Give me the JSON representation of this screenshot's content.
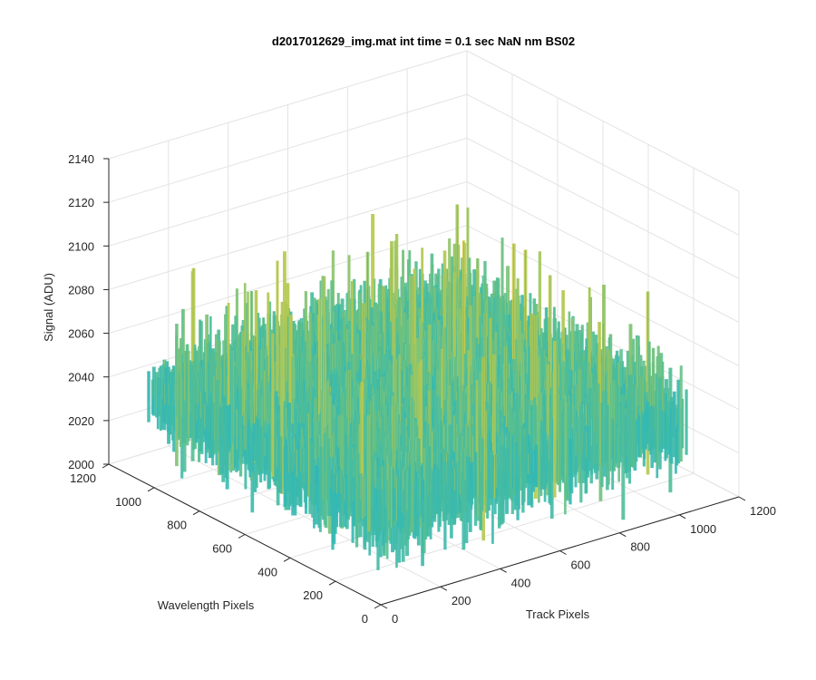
{
  "chart_data": {
    "type": "surface",
    "title": "d2017012629_img.mat int time = 0.1 sec  NaN nm BS02",
    "xlabel": "Track Pixels",
    "ylabel": "Wavelength Pixels",
    "zlabel": "Signal (ADU)",
    "x_ticks": [
      "0",
      "200",
      "400",
      "600",
      "800",
      "1000",
      "1200"
    ],
    "y_ticks": [
      "0",
      "200",
      "400",
      "600",
      "800",
      "1000",
      "1200"
    ],
    "z_ticks": [
      "2000",
      "2020",
      "2040",
      "2060",
      "2080",
      "2100",
      "2120",
      "2140"
    ],
    "xlim": [
      0,
      1200
    ],
    "ylim": [
      0,
      1200
    ],
    "zlim": [
      2000,
      2140
    ],
    "x_data_range": [
      0,
      1024
    ],
    "y_data_range": [
      0,
      1024
    ],
    "signal_mean": 2040,
    "signal_min": 2000,
    "signal_max": 2130,
    "grid": true,
    "colormap": [
      "#0072BD",
      "#2A8FD8",
      "#1FB5C9",
      "#5CC08C",
      "#BFC94A",
      "#E9CF3A"
    ]
  }
}
